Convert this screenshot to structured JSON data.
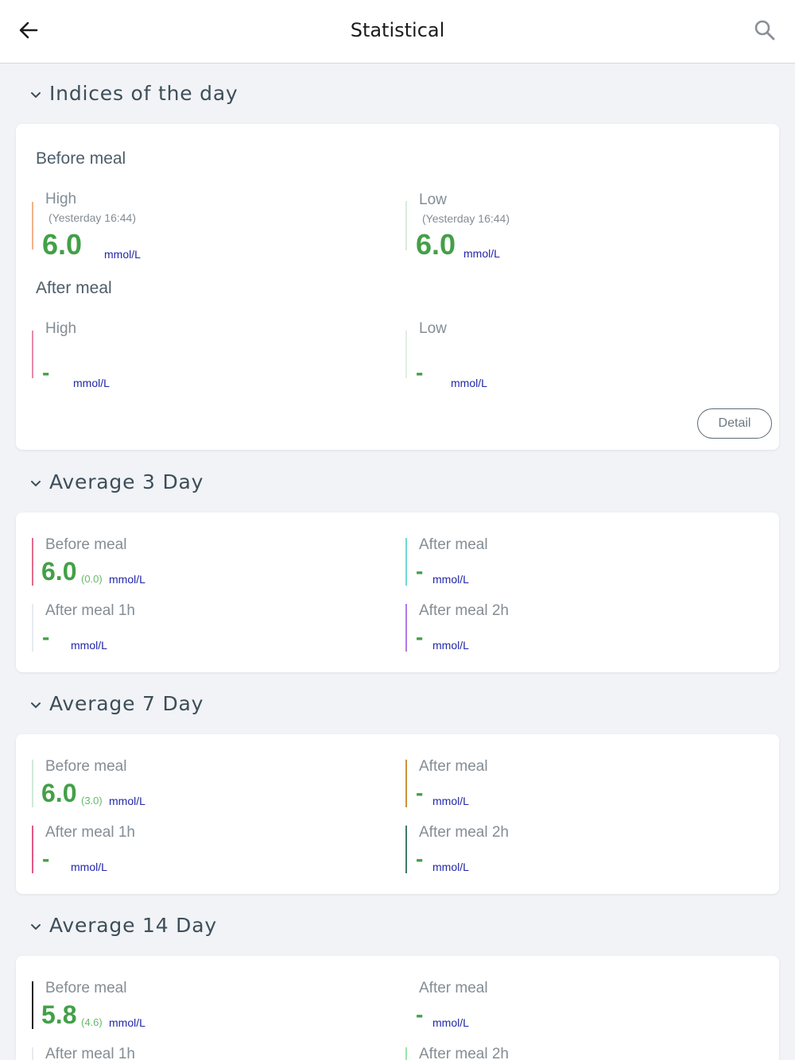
{
  "header": {
    "title": "Statistical",
    "back_icon": "arrow-left-icon",
    "search_icon": "search-icon"
  },
  "sections": {
    "indices": {
      "title": "Indices of the day",
      "before_meal": {
        "label": "Before meal",
        "high": {
          "label": "High",
          "time": "(Yesterday 16:44)",
          "value": "6.0",
          "unit": "mmol/L",
          "color": "#f3b38a"
        },
        "low": {
          "label": "Low",
          "time": "(Yesterday 16:44)",
          "value": "6.0",
          "unit": "mmol/L",
          "color": "#d9ecd9"
        }
      },
      "after_meal": {
        "label": "After meal",
        "high": {
          "label": "High",
          "value": "-",
          "unit": "mmol/L",
          "color": "#e88aa8"
        },
        "low": {
          "label": "Low",
          "value": "-",
          "unit": "mmol/L",
          "color": "#dff0df"
        }
      },
      "detail_label": "Detail"
    },
    "avg3": {
      "title": "Average 3 Day",
      "before_meal": {
        "label": "Before meal",
        "value": "6.0",
        "delta": "(0.0)",
        "unit": "mmol/L",
        "color": "#e06c8c"
      },
      "after_meal": {
        "label": "After meal",
        "value": "-",
        "unit": "mmol/L",
        "color": "#6fd9d6"
      },
      "after_meal_1h": {
        "label": "After meal 1h",
        "value": "-",
        "unit": "mmol/L",
        "color": "#e6eaf0"
      },
      "after_meal_2h": {
        "label": "After meal 2h",
        "value": "-",
        "unit": "mmol/L",
        "color": "#b07ae8"
      }
    },
    "avg7": {
      "title": "Average 7 Day",
      "before_meal": {
        "label": "Before meal",
        "value": "6.0",
        "delta": "(3.0)",
        "unit": "mmol/L",
        "color": "#cfead8"
      },
      "after_meal": {
        "label": "After meal",
        "value": "-",
        "unit": "mmol/L",
        "color": "#c8943a"
      },
      "after_meal_1h": {
        "label": "After meal 1h",
        "value": "-",
        "unit": "mmol/L",
        "color": "#e05a85"
      },
      "after_meal_2h": {
        "label": "After meal 2h",
        "value": "-",
        "unit": "mmol/L",
        "color": "#3f7a63"
      }
    },
    "avg14": {
      "title": "Average 14 Day",
      "before_meal": {
        "label": "Before meal",
        "value": "5.8",
        "delta": "(4.6)",
        "unit": "mmol/L",
        "color": "#222222"
      },
      "after_meal": {
        "label": "After meal",
        "value": "-",
        "unit": "mmol/L",
        "color": "#ffffff"
      },
      "after_meal_1h": {
        "label": "After meal 1h",
        "color": "#e6eaf0"
      },
      "after_meal_2h": {
        "label": "After meal 2h",
        "color": "#9be3a8"
      }
    }
  }
}
